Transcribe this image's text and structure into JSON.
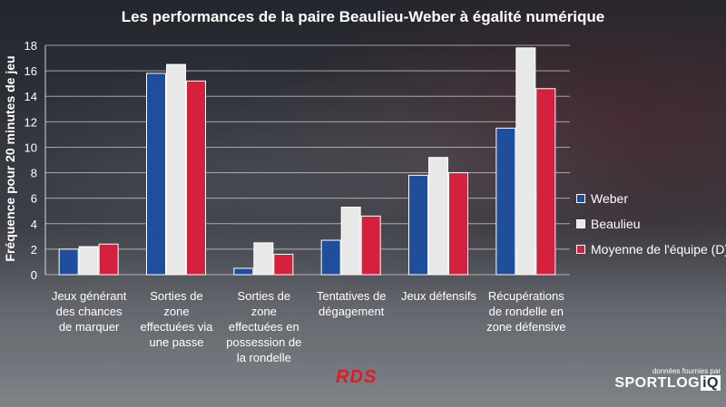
{
  "title": "Les performances de la paire Beaulieu-Weber à égalité numérique",
  "chart_data": {
    "type": "bar",
    "title": "Les performances de la paire Beaulieu-Weber à égalité numérique",
    "ylabel": "Fréquence  pour 20 minutes de jeu",
    "xlabel": "",
    "ylim": [
      0,
      18
    ],
    "yticks": [
      0,
      2,
      4,
      6,
      8,
      10,
      12,
      14,
      16,
      18
    ],
    "grid": true,
    "legend_position": "right",
    "categories": [
      "Jeux générant des chances de marquer",
      "Sorties de zone effectuées via une passe",
      "Sorties de zone effectuées en possession de la rondelle",
      "Tentatives de dégagement",
      "Jeux défensifs",
      "Récupérations de rondelle en zone défensive"
    ],
    "category_lines": [
      [
        "Jeux générant",
        "des chances",
        "de marquer"
      ],
      [
        "Sorties de",
        "zone",
        "effectuées via",
        "une passe"
      ],
      [
        "Sorties de",
        "zone",
        "effectuées en",
        "possession de",
        "la rondelle"
      ],
      [
        "Tentatives de",
        "dégagement"
      ],
      [
        "Jeux défensifs"
      ],
      [
        "Récupérations",
        "de rondelle en",
        "zone défensive"
      ]
    ],
    "series": [
      {
        "name": "Weber",
        "color": "#1f4e9c",
        "values": [
          2.0,
          15.8,
          0.5,
          2.7,
          7.8,
          11.5
        ]
      },
      {
        "name": "Beaulieu",
        "color": "#e8e8e8",
        "values": [
          2.2,
          16.5,
          2.5,
          5.3,
          9.2,
          17.8
        ]
      },
      {
        "name": "Moyenne de l'équipe (D)",
        "color": "#d4213d",
        "values": [
          2.4,
          15.2,
          1.6,
          4.6,
          8.0,
          14.6
        ]
      }
    ]
  },
  "branding": {
    "broadcaster": "RDS",
    "credit_small": "données fournies par",
    "credit_brand": "SPORTLOG",
    "credit_brand_suffix": "iQ"
  }
}
